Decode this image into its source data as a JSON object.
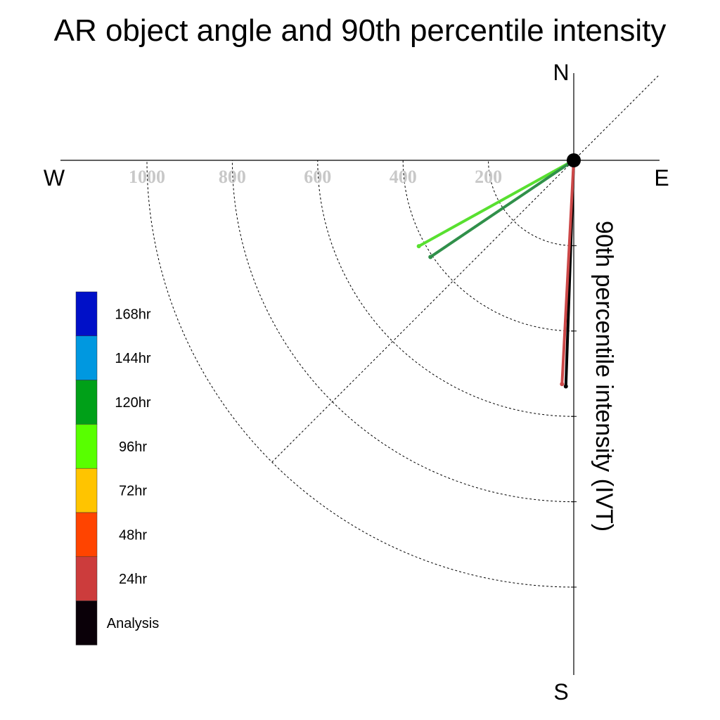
{
  "chart_data": {
    "type": "polar-vector",
    "title": "AR object angle and 90th percentile intensity",
    "ylabel": "90th percentile intensity (IVT)",
    "compass": {
      "north": "N",
      "south": "S",
      "east": "E",
      "west": "W"
    },
    "radial_ticks": [
      "200",
      "400",
      "600",
      "800",
      "1000"
    ],
    "radial_tick_values": [
      200,
      400,
      600,
      800,
      1000
    ],
    "radial_max": 1200,
    "grid": true,
    "legend_position": "left",
    "legend": [
      {
        "label": "168hr",
        "color": "#0010c8"
      },
      {
        "label": "144hr",
        "color": "#0098e0"
      },
      {
        "label": "120hr",
        "color": "#00a018"
      },
      {
        "label": "96hr",
        "color": "#58ff00"
      },
      {
        "label": "72hr",
        "color": "#ffc400"
      },
      {
        "label": "48hr",
        "color": "#ff4400"
      },
      {
        "label": "24hr",
        "color": "#cc3c3c"
      },
      {
        "label": "Analysis",
        "color": "#0a0008"
      }
    ],
    "series": [
      {
        "name": "Analysis",
        "color": "#000000",
        "direction_deg": 182,
        "intensity": 530
      },
      {
        "name": "24hr",
        "color": "#cc4848",
        "direction_deg": 183,
        "intensity": 525
      },
      {
        "name": "96hr",
        "color": "#58e030",
        "direction_deg": 241,
        "intensity": 415
      },
      {
        "name": "120hr",
        "color": "#30904a",
        "direction_deg": 236,
        "intensity": 405
      }
    ]
  }
}
